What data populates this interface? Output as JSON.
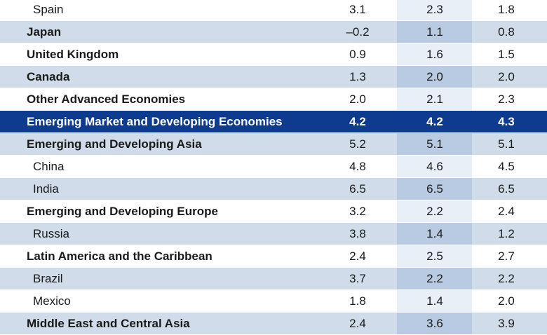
{
  "rows": [
    {
      "label": "Spain",
      "style": "indent",
      "shade": "white",
      "v1": "3.1",
      "v2": "2.3",
      "v3": "1.8"
    },
    {
      "label": "Japan",
      "style": "bold",
      "shade": "shade",
      "v1": "–0.2",
      "v2": "1.1",
      "v3": "0.8"
    },
    {
      "label": "United Kingdom",
      "style": "bold",
      "shade": "white",
      "v1": "0.9",
      "v2": "1.6",
      "v3": "1.5"
    },
    {
      "label": "Canada",
      "style": "bold",
      "shade": "shade",
      "v1": "1.3",
      "v2": "2.0",
      "v3": "2.0"
    },
    {
      "label": "Other Advanced Economies",
      "style": "bold",
      "shade": "white",
      "v1": "2.0",
      "v2": "2.1",
      "v3": "2.3"
    },
    {
      "label": "Emerging Market and Developing Economies",
      "style": "bold",
      "shade": "highlight",
      "v1": "4.2",
      "v2": "4.2",
      "v3": "4.3"
    },
    {
      "label": "Emerging and Developing Asia",
      "style": "bold",
      "shade": "shade",
      "v1": "5.2",
      "v2": "5.1",
      "v3": "5.1"
    },
    {
      "label": "China",
      "style": "indent",
      "shade": "white",
      "v1": "4.8",
      "v2": "4.6",
      "v3": "4.5"
    },
    {
      "label": "India",
      "style": "indent",
      "shade": "shade",
      "v1": "6.5",
      "v2": "6.5",
      "v3": "6.5"
    },
    {
      "label": "Emerging and Developing Europe",
      "style": "bold",
      "shade": "white",
      "v1": "3.2",
      "v2": "2.2",
      "v3": "2.4"
    },
    {
      "label": "Russia",
      "style": "indent",
      "shade": "shade",
      "v1": "3.8",
      "v2": "1.4",
      "v3": "1.2"
    },
    {
      "label": "Latin America and the Caribbean",
      "style": "bold",
      "shade": "white",
      "v1": "2.4",
      "v2": "2.5",
      "v3": "2.7"
    },
    {
      "label": "Brazil",
      "style": "indent",
      "shade": "shade",
      "v1": "3.7",
      "v2": "2.2",
      "v3": "2.2"
    },
    {
      "label": "Mexico",
      "style": "indent",
      "shade": "white",
      "v1": "1.8",
      "v2": "1.4",
      "v3": "2.0"
    },
    {
      "label": "Middle East and Central Asia",
      "style": "bold",
      "shade": "shade",
      "v1": "2.4",
      "v2": "3.6",
      "v3": "3.9"
    }
  ]
}
